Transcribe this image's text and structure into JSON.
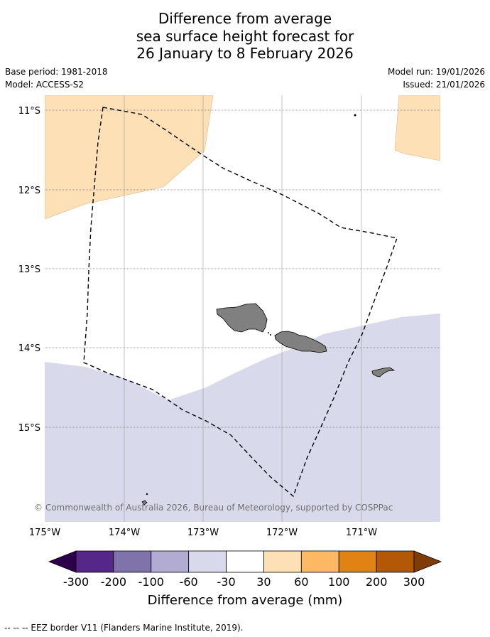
{
  "title": {
    "line1": "Difference from average",
    "line2": "sea surface height forecast for",
    "line3": "26 January to 8 February 2026"
  },
  "meta": {
    "base_period": "Base period: 1981-2018",
    "model": "Model: ACCESS-S2",
    "model_run": "Model run: 19/01/2026",
    "issued": "Issued: 21/01/2026"
  },
  "map": {
    "lat_labels": [
      "11°S",
      "12°S",
      "13°S",
      "14°S",
      "15°S"
    ],
    "lon_labels": [
      "175°W",
      "174°W",
      "173°W",
      "172°W",
      "171°W"
    ],
    "copyright": "© Commonwealth of Australia 2026, Bureau of Meteorology, supported by COSPPac"
  },
  "colorbar": {
    "label": "Difference from average (mm)",
    "ticks": [
      "-300",
      "-200",
      "-100",
      "-60",
      "-30",
      "30",
      "60",
      "100",
      "200",
      "300"
    ],
    "colors": {
      "extend_low": "#2d004b",
      "bins": [
        "#542788",
        "#8073ac",
        "#b2abd2",
        "#d8daeb",
        "#ffffff",
        "#fee0b6",
        "#fdb863",
        "#e08214",
        "#b35806"
      ],
      "extend_high": "#7f3b08"
    }
  },
  "colors": {
    "positive_region": "#fee0b6",
    "negative_region": "#d8daeb",
    "land": "#808080"
  },
  "footer": "--  --  -- EEZ border V11 (Flanders Marine Institute, 2019)."
}
